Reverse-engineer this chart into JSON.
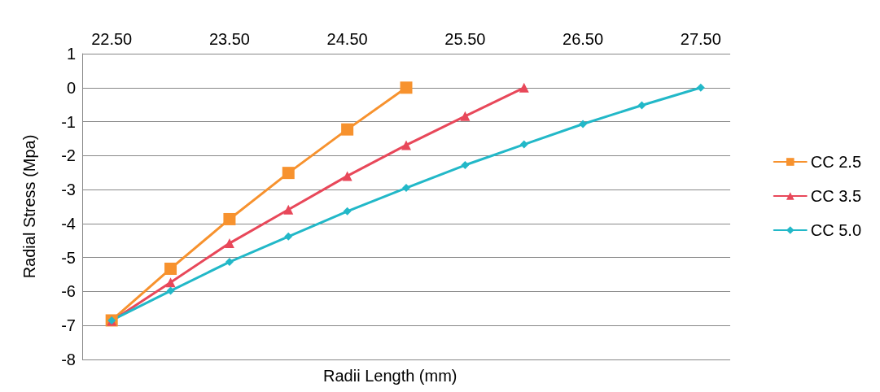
{
  "chart_data": {
    "type": "line",
    "xlabel": "Radii Length (mm)",
    "ylabel": "Radial Stress (Mpa)",
    "categories": [
      "22.50",
      null,
      "23.50",
      null,
      "24.50",
      null,
      "25.50",
      null,
      "26.50",
      null,
      "27.50"
    ],
    "series": [
      {
        "name": "CC 2.5",
        "color": "#f7922e",
        "marker": "square",
        "values": [
          -6.85,
          -5.33,
          -3.87,
          -2.51,
          -1.23,
          0.0,
          null,
          null,
          null,
          null,
          null
        ]
      },
      {
        "name": "CC 3.5",
        "color": "#e8485a",
        "marker": "triangle",
        "values": [
          -6.87,
          -5.73,
          -4.58,
          -3.59,
          -2.6,
          -1.69,
          -0.84,
          0.0,
          null,
          null,
          null
        ]
      },
      {
        "name": "CC 5.0",
        "color": "#22b8c8",
        "marker": "diamond",
        "values": [
          -6.85,
          -5.98,
          -5.13,
          -4.38,
          -3.64,
          -2.95,
          -2.28,
          -1.67,
          -1.07,
          -0.52,
          0.0
        ]
      }
    ],
    "ylim": [
      -8,
      1
    ],
    "yticks": [
      -8,
      -7,
      -6,
      -5,
      -4,
      -3,
      -2,
      -1,
      0,
      1
    ],
    "grid": "y",
    "legend": "right",
    "line_style": "solid"
  }
}
